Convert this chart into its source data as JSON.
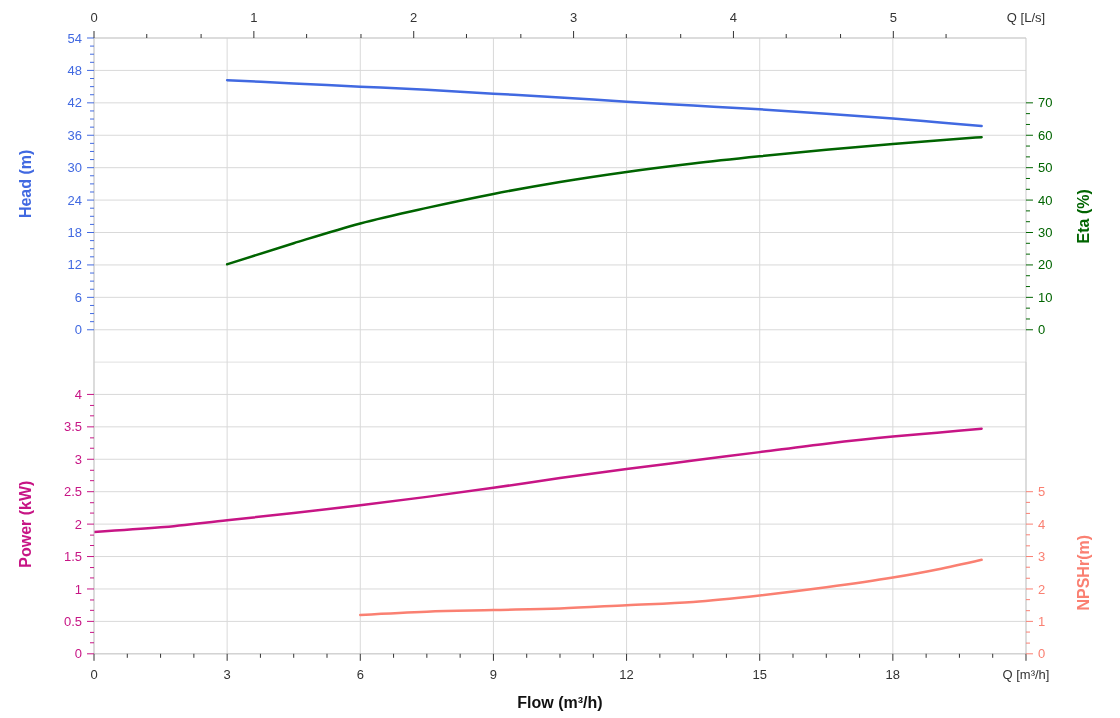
{
  "chart_data": [
    {
      "type": "line",
      "ylabel": "Head (m)",
      "y2label": "Eta (%)",
      "x2label": "Q [L/s]",
      "tick_labels": "y",
      "grid": true,
      "xlim": [
        0,
        21
      ],
      "xticks": [
        0,
        3,
        6,
        9,
        12,
        15,
        18
      ],
      "x2lim": [
        0,
        5.83
      ],
      "x2ticks": [
        0,
        {
          "value": 0.33,
          "label": null
        },
        {
          "value": 0.67,
          "label": null
        },
        1,
        {
          "value": 1.33,
          "label": null
        },
        {
          "value": 1.67,
          "label": null
        },
        2,
        {
          "value": 2.33,
          "label": null
        },
        {
          "value": 2.67,
          "label": null
        },
        3,
        {
          "value": 3.33,
          "label": null
        },
        {
          "value": 3.67,
          "label": null
        },
        4,
        {
          "value": 4.33,
          "label": null
        },
        {
          "value": 4.67,
          "label": null
        },
        5,
        {
          "value": 5.33,
          "label": null
        }
      ],
      "ylim": [
        -6,
        54
      ],
      "yticks": [
        0,
        {
          "value": 1.5,
          "label": null
        },
        {
          "value": 3,
          "label": null
        },
        {
          "value": 4.5,
          "label": null
        },
        6,
        {
          "value": 7.5,
          "label": null
        },
        {
          "value": 9,
          "label": null
        },
        {
          "value": 10.5,
          "label": null
        },
        12,
        {
          "value": 13.5,
          "label": null
        },
        {
          "value": 15,
          "label": null
        },
        {
          "value": 16.5,
          "label": null
        },
        18,
        {
          "value": 19.5,
          "label": null
        },
        {
          "value": 21,
          "label": null
        },
        {
          "value": 22.5,
          "label": null
        },
        24,
        {
          "value": 25.5,
          "label": null
        },
        {
          "value": 27,
          "label": null
        },
        {
          "value": 28.5,
          "label": null
        },
        30,
        {
          "value": 31.5,
          "label": null
        },
        {
          "value": 33,
          "label": null
        },
        {
          "value": 34.5,
          "label": null
        },
        36,
        {
          "value": 37.5,
          "label": null
        },
        {
          "value": 39,
          "label": null
        },
        {
          "value": 40.5,
          "label": null
        },
        42,
        {
          "value": 43.5,
          "label": null
        },
        {
          "value": 45,
          "label": null
        },
        {
          "value": 46.5,
          "label": null
        },
        48,
        {
          "value": 49.5,
          "label": null
        },
        {
          "value": 51,
          "label": null
        },
        {
          "value": 52.5,
          "label": null
        },
        54
      ],
      "y2lim": [
        -10,
        90
      ],
      "y2ticks": [
        0,
        {
          "value": 3.33,
          "label": null
        },
        {
          "value": 6.67,
          "label": null
        },
        10,
        {
          "value": 13.33,
          "label": null
        },
        {
          "value": 16.67,
          "label": null
        },
        20,
        {
          "value": 23.33,
          "label": null
        },
        {
          "value": 26.67,
          "label": null
        },
        30,
        {
          "value": 33.33,
          "label": null
        },
        {
          "value": 36.67,
          "label": null
        },
        40,
        {
          "value": 43.33,
          "label": null
        },
        {
          "value": 46.67,
          "label": null
        },
        50,
        {
          "value": 53.33,
          "label": null
        },
        {
          "value": 56.67,
          "label": null
        },
        60,
        {
          "value": 63.33,
          "label": null
        },
        {
          "value": 66.67,
          "label": null
        },
        70
      ],
      "series": [
        {
          "color": "#4169e1",
          "x": [
            3,
            4.5,
            6,
            7.5,
            9,
            10.5,
            12,
            13.5,
            15,
            16.5,
            18,
            19,
            20
          ],
          "values": [
            46.2,
            45.6,
            45.0,
            44.4,
            43.7,
            43.0,
            42.2,
            41.5,
            40.8,
            40.0,
            39.1,
            38.4,
            37.7
          ]
        },
        {
          "color": "#006400",
          "axis": "y2",
          "x": [
            3,
            4.5,
            6,
            7.5,
            9,
            10.5,
            12,
            13.5,
            15,
            16.5,
            18,
            19,
            20
          ],
          "values": [
            20.2,
            26.7,
            32.8,
            37.6,
            41.9,
            45.6,
            48.7,
            51.3,
            53.5,
            55.5,
            57.3,
            58.4,
            59.4
          ]
        }
      ]
    },
    {
      "type": "line",
      "xlabel": "Flow (m³/h)",
      "ylabel": "Power (kW)",
      "y2label": "NPSHr(m)",
      "grid": true,
      "xlim": [
        0,
        21
      ],
      "xticks": [
        0,
        {
          "value": 0.75,
          "label": null
        },
        {
          "value": 1.5,
          "label": null
        },
        {
          "value": 2.25,
          "label": null
        },
        3,
        {
          "value": 3.75,
          "label": null
        },
        {
          "value": 4.5,
          "label": null
        },
        {
          "value": 5.25,
          "label": null
        },
        6,
        {
          "value": 6.75,
          "label": null
        },
        {
          "value": 7.5,
          "label": null
        },
        {
          "value": 8.25,
          "label": null
        },
        9,
        {
          "value": 9.75,
          "label": null
        },
        {
          "value": 10.5,
          "label": null
        },
        {
          "value": 11.25,
          "label": null
        },
        12,
        {
          "value": 12.75,
          "label": null
        },
        {
          "value": 13.5,
          "label": null
        },
        {
          "value": 14.25,
          "label": null
        },
        15,
        {
          "value": 15.75,
          "label": null
        },
        {
          "value": 16.5,
          "label": null
        },
        {
          "value": 17.25,
          "label": null
        },
        18,
        {
          "value": 18.75,
          "label": null
        },
        {
          "value": 19.5,
          "label": null
        },
        {
          "value": 20.25,
          "label": null
        },
        {
          "value": 21,
          "label": "Q [m³/h]"
        }
      ],
      "ylim": [
        0,
        4.5
      ],
      "yticks": [
        0,
        {
          "value": 0.17,
          "label": null
        },
        {
          "value": 0.33,
          "label": null
        },
        0.5,
        {
          "value": 0.67,
          "label": null
        },
        {
          "value": 0.83,
          "label": null
        },
        1,
        {
          "value": 1.17,
          "label": null
        },
        {
          "value": 1.33,
          "label": null
        },
        1.5,
        {
          "value": 1.67,
          "label": null
        },
        {
          "value": 1.83,
          "label": null
        },
        2,
        {
          "value": 2.17,
          "label": null
        },
        {
          "value": 2.33,
          "label": null
        },
        2.5,
        {
          "value": 2.67,
          "label": null
        },
        {
          "value": 2.83,
          "label": null
        },
        3,
        {
          "value": 3.17,
          "label": null
        },
        {
          "value": 3.33,
          "label": null
        },
        3.5,
        {
          "value": 3.67,
          "label": null
        },
        {
          "value": 3.83,
          "label": null
        },
        4
      ],
      "y2lim": [
        0,
        9
      ],
      "y2ticks": [
        0,
        {
          "value": 0.33,
          "label": null
        },
        {
          "value": 0.67,
          "label": null
        },
        1,
        {
          "value": 1.33,
          "label": null
        },
        {
          "value": 1.67,
          "label": null
        },
        2,
        {
          "value": 2.33,
          "label": null
        },
        {
          "value": 2.67,
          "label": null
        },
        3,
        {
          "value": 3.33,
          "label": null
        },
        {
          "value": 3.67,
          "label": null
        },
        4,
        {
          "value": 4.33,
          "label": null
        },
        {
          "value": 4.67,
          "label": null
        },
        5
      ],
      "series": [
        {
          "color": "#c71585",
          "x": [
            0,
            1.5,
            3,
            4.5,
            6,
            7.5,
            9,
            10.5,
            12,
            13.5,
            15,
            16.5,
            18,
            19,
            20
          ],
          "values": [
            1.88,
            1.95,
            2.06,
            2.17,
            2.29,
            2.42,
            2.56,
            2.71,
            2.85,
            2.98,
            3.11,
            3.24,
            3.35,
            3.41,
            3.47
          ]
        },
        {
          "color": "#fa8072",
          "axis": "y2",
          "x": [
            6,
            7.5,
            9,
            10.5,
            12,
            13.5,
            15,
            16.5,
            18,
            19,
            20
          ],
          "values": [
            1.2,
            1.3,
            1.35,
            1.4,
            1.5,
            1.6,
            1.8,
            2.05,
            2.35,
            2.6,
            2.9
          ]
        }
      ]
    }
  ]
}
